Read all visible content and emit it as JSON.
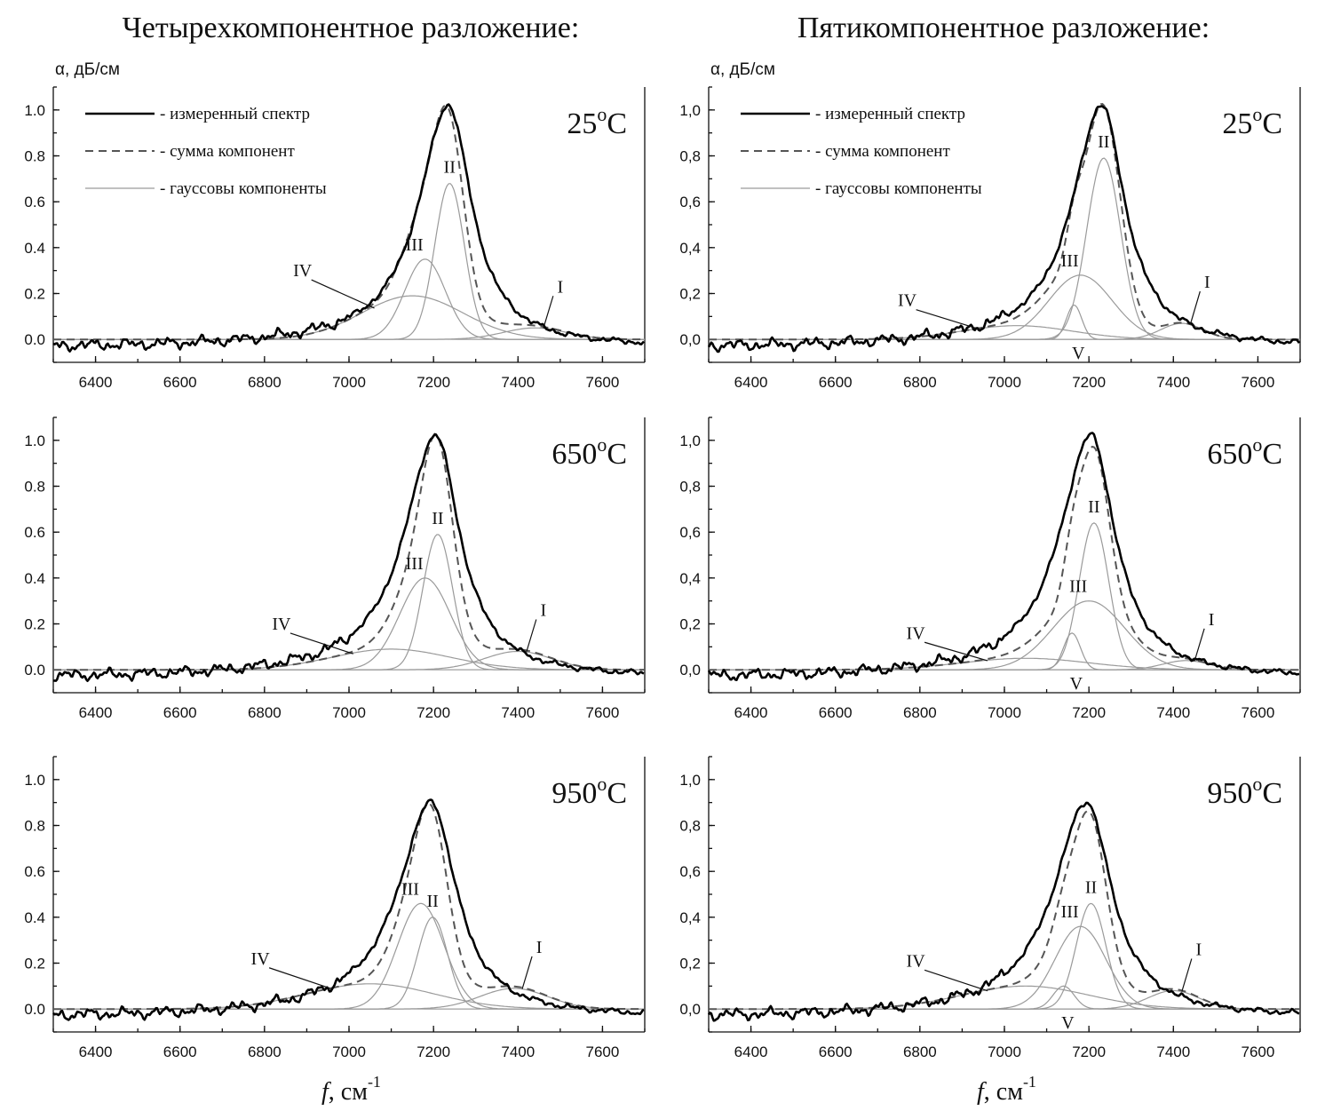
{
  "chart_data": {
    "type": "line",
    "columns": [
      {
        "title": "Четырехкомпонентное разложение:",
        "decimal": "."
      },
      {
        "title": "Пятикомпонентное разложение:",
        "decimal": ","
      }
    ],
    "ylabel_unit": "α,  дБ/см",
    "xlabel_f": "f",
    "xlabel_unit": ", см",
    "xlabel_unit_right": ",  см",
    "xlabel_exp": "-1",
    "xlim": [
      6300,
      7700
    ],
    "ylim": [
      -0.1,
      1.1
    ],
    "xticks": [
      6400,
      6600,
      6800,
      7000,
      7200,
      7400,
      7600
    ],
    "yticks": [
      0.0,
      0.2,
      0.4,
      0.6,
      0.8,
      1.0
    ],
    "legend": {
      "measured": "- измеренный спектр",
      "sum": "- сумма компонент",
      "gaussian": "- гауссовы компоненты"
    },
    "temperature_unit": "C",
    "temperature_degree": "o",
    "panels": [
      {
        "id": "p4-25",
        "column": 0,
        "row": 0,
        "temperature": "25",
        "measured": {
          "x0": 7235,
          "w": 68,
          "wl": 85,
          "a": 1.05
        },
        "components": [
          {
            "label": "I",
            "center": 7440,
            "sigma": 75,
            "amplitude": 0.05
          },
          {
            "label": "II",
            "center": 7238,
            "sigma": 35,
            "amplitude": 0.68
          },
          {
            "label": "III",
            "center": 7180,
            "sigma": 48,
            "amplitude": 0.35
          },
          {
            "label": "IV",
            "center": 7150,
            "sigma": 120,
            "amplitude": 0.19
          }
        ]
      },
      {
        "id": "p5-25",
        "column": 1,
        "row": 0,
        "temperature": "25",
        "measured": {
          "x0": 7230,
          "w": 68,
          "wl": 85,
          "a": 1.05
        },
        "components": [
          {
            "label": "I",
            "center": 7420,
            "sigma": 50,
            "amplitude": 0.07
          },
          {
            "label": "II",
            "center": 7235,
            "sigma": 40,
            "amplitude": 0.79
          },
          {
            "label": "III",
            "center": 7180,
            "sigma": 75,
            "amplitude": 0.28
          },
          {
            "label": "IV",
            "center": 7030,
            "sigma": 130,
            "amplitude": 0.06
          },
          {
            "label": "V",
            "center": 7165,
            "sigma": 18,
            "amplitude": 0.15
          }
        ]
      },
      {
        "id": "p4-650",
        "column": 0,
        "row": 1,
        "temperature": "650",
        "measured": {
          "x0": 7205,
          "w": 70,
          "wl": 90,
          "a": 1.05
        },
        "components": [
          {
            "label": "I",
            "center": 7400,
            "sigma": 80,
            "amplitude": 0.08
          },
          {
            "label": "II",
            "center": 7210,
            "sigma": 35,
            "amplitude": 0.59
          },
          {
            "label": "III",
            "center": 7180,
            "sigma": 60,
            "amplitude": 0.4
          },
          {
            "label": "IV",
            "center": 7100,
            "sigma": 140,
            "amplitude": 0.09
          }
        ]
      },
      {
        "id": "p5-650",
        "column": 1,
        "row": 1,
        "temperature": "650",
        "measured": {
          "x0": 7205,
          "w": 70,
          "wl": 90,
          "a": 1.05
        },
        "components": [
          {
            "label": "I",
            "center": 7430,
            "sigma": 55,
            "amplitude": 0.04
          },
          {
            "label": "II",
            "center": 7212,
            "sigma": 35,
            "amplitude": 0.64
          },
          {
            "label": "III",
            "center": 7200,
            "sigma": 85,
            "amplitude": 0.3
          },
          {
            "label": "IV",
            "center": 7050,
            "sigma": 150,
            "amplitude": 0.05
          },
          {
            "label": "V",
            "center": 7160,
            "sigma": 20,
            "amplitude": 0.16
          }
        ]
      },
      {
        "id": "p4-950",
        "column": 0,
        "row": 2,
        "temperature": "950",
        "measured": {
          "x0": 7195,
          "w": 72,
          "wl": 95,
          "a": 0.93
        },
        "components": [
          {
            "label": "I",
            "center": 7390,
            "sigma": 80,
            "amplitude": 0.09
          },
          {
            "label": "II",
            "center": 7198,
            "sigma": 35,
            "amplitude": 0.4
          },
          {
            "label": "III",
            "center": 7170,
            "sigma": 55,
            "amplitude": 0.46
          },
          {
            "label": "IV",
            "center": 7050,
            "sigma": 150,
            "amplitude": 0.11
          }
        ]
      },
      {
        "id": "p5-950",
        "column": 1,
        "row": 2,
        "temperature": "950",
        "measured": {
          "x0": 7195,
          "w": 72,
          "wl": 95,
          "a": 0.93
        },
        "components": [
          {
            "label": "I",
            "center": 7400,
            "sigma": 60,
            "amplitude": 0.08
          },
          {
            "label": "II",
            "center": 7205,
            "sigma": 35,
            "amplitude": 0.46
          },
          {
            "label": "III",
            "center": 7180,
            "sigma": 60,
            "amplitude": 0.36
          },
          {
            "label": "IV",
            "center": 7050,
            "sigma": 150,
            "amplitude": 0.1
          },
          {
            "label": "V",
            "center": 7140,
            "sigma": 25,
            "amplitude": 0.1
          }
        ]
      }
    ]
  }
}
